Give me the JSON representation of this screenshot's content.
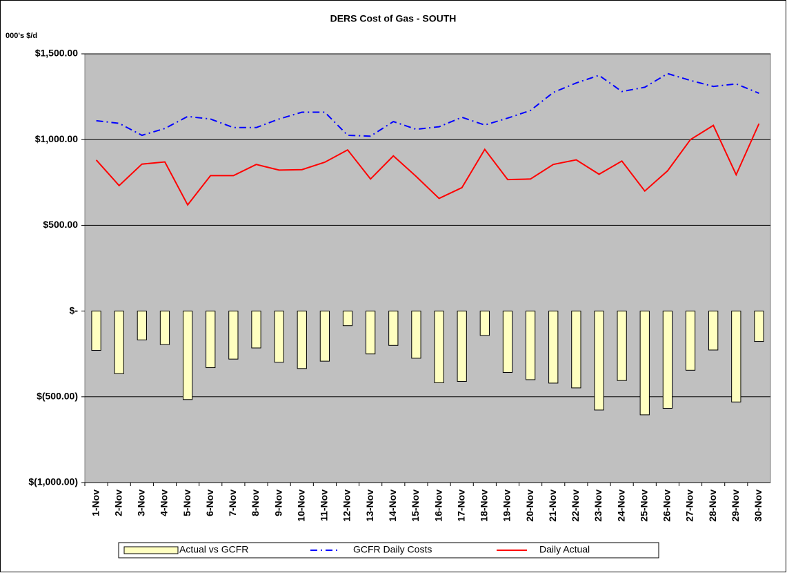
{
  "chart_data": {
    "type": "bar",
    "title": "DERS Cost of Gas - SOUTH",
    "y_label": "000's $/d",
    "categories": [
      "1-Nov",
      "2-Nov",
      "3-Nov",
      "4-Nov",
      "5-Nov",
      "6-Nov",
      "7-Nov",
      "8-Nov",
      "9-Nov",
      "10-Nov",
      "11-Nov",
      "12-Nov",
      "13-Nov",
      "14-Nov",
      "15-Nov",
      "16-Nov",
      "17-Nov",
      "18-Nov",
      "19-Nov",
      "20-Nov",
      "21-Nov",
      "22-Nov",
      "23-Nov",
      "24-Nov",
      "25-Nov",
      "26-Nov",
      "27-Nov",
      "28-Nov",
      "29-Nov",
      "30-Nov"
    ],
    "series": [
      {
        "name": "Actual vs GCFR",
        "type": "bar",
        "color": "#ffffc0",
        "values": [
          -229,
          -365,
          -168,
          -195,
          -516,
          -330,
          -280,
          -215,
          -298,
          -335,
          -292,
          -85,
          -250,
          -200,
          -275,
          -418,
          -410,
          -142,
          -358,
          -400,
          -420,
          -448,
          -577,
          -405,
          -605,
          -567,
          -345,
          -227,
          -530,
          -177
        ]
      },
      {
        "name": "GCFR Daily Costs",
        "type": "line",
        "dash": "dashdot",
        "color": "#0000ff",
        "values": [
          1110,
          1095,
          1025,
          1065,
          1135,
          1120,
          1070,
          1070,
          1120,
          1160,
          1160,
          1025,
          1020,
          1105,
          1060,
          1075,
          1130,
          1085,
          1125,
          1170,
          1275,
          1330,
          1375,
          1280,
          1305,
          1385,
          1345,
          1310,
          1325,
          1270
        ]
      },
      {
        "name": "Daily Actual",
        "type": "line",
        "color": "#ff0000",
        "values": [
          881,
          732,
          857,
          870,
          619,
          790,
          790,
          855,
          822,
          825,
          868,
          940,
          770,
          905,
          785,
          657,
          720,
          943,
          767,
          770,
          855,
          882,
          798,
          875,
          700,
          818,
          1000,
          1083,
          795,
          1093
        ]
      }
    ],
    "ylim": [
      -1000,
      1500
    ],
    "yticks": [
      {
        "value": -1000,
        "label": "$(1,000.00)"
      },
      {
        "value": -500,
        "label": "$(500.00)"
      },
      {
        "value": 0,
        "label": "$-"
      },
      {
        "value": 500,
        "label": "$500.00"
      },
      {
        "value": 1000,
        "label": "$1,000.00"
      },
      {
        "value": 1500,
        "label": "$1,500.00"
      }
    ],
    "grid": true,
    "plot_background": "#c0c0c0",
    "legend": "bottom"
  }
}
